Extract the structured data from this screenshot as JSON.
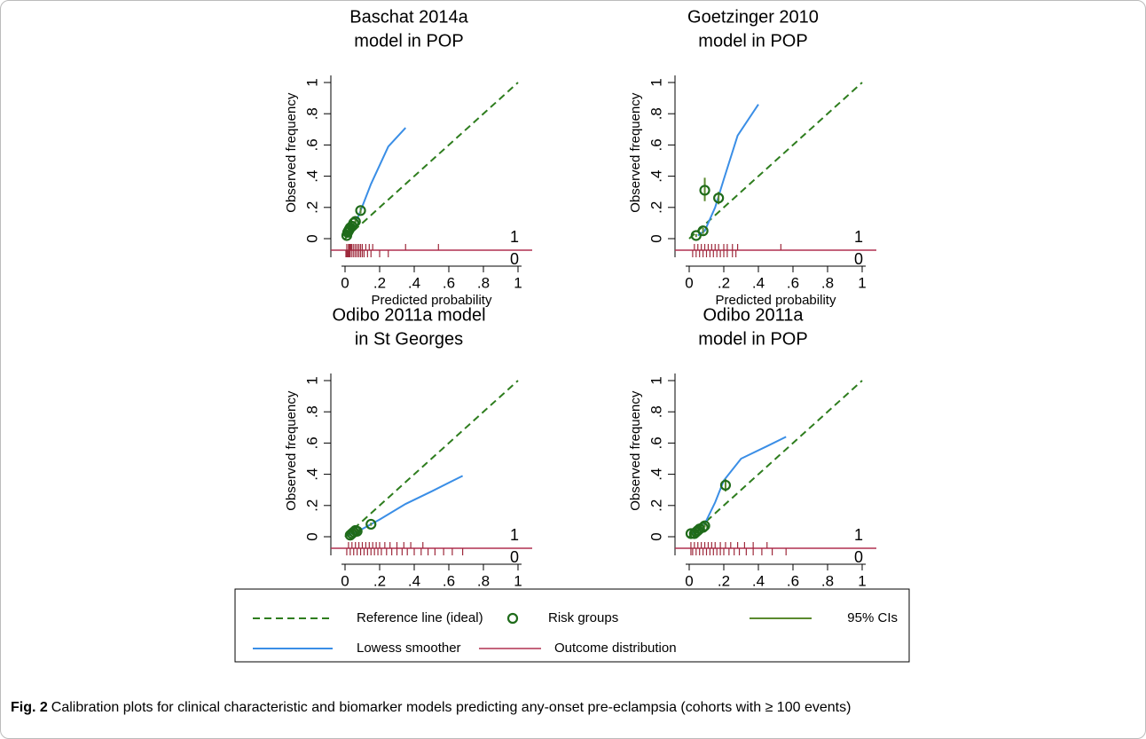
{
  "chart_data": [
    {
      "type": "calibration",
      "title": [
        "Baschat 2014a",
        "model in POP"
      ],
      "xlabel": "Predicted probability",
      "ylabel": "Observed frequency",
      "xlim": [
        0,
        1
      ],
      "ylim": [
        0,
        1
      ],
      "xticks": [
        0,
        {
          "value": 0.2,
          "label": ".2"
        },
        {
          "value": 0.4,
          "label": ".4"
        },
        {
          "value": 0.6,
          "label": ".6"
        },
        {
          "value": 0.8,
          "label": ".8"
        },
        1
      ],
      "yticks": [
        0,
        {
          "value": 0.2,
          "label": ".2"
        },
        {
          "value": 0.4,
          "label": ".4"
        },
        {
          "value": 0.6,
          "label": ".6"
        },
        {
          "value": 0.8,
          "label": ".8"
        },
        1
      ],
      "series": [
        {
          "color": "#2e7d1e",
          "x": [
            0,
            1
          ],
          "values": [
            0,
            1
          ]
        },
        {
          "color": "#3a8ee6",
          "x": [
            0.01,
            0.03,
            0.05,
            0.08,
            0.15,
            0.25,
            0.35
          ],
          "values": [
            0.01,
            0.05,
            0.09,
            0.15,
            0.35,
            0.59,
            0.71
          ]
        },
        {
          "color": "#1f6b1a",
          "x": [
            0.01,
            0.015,
            0.02,
            0.025,
            0.03,
            0.04,
            0.05,
            0.06,
            0.09
          ],
          "values": [
            0.02,
            0.04,
            0.05,
            0.06,
            0.07,
            0.08,
            0.1,
            0.11,
            0.18
          ],
          "ci_low": [
            0.01,
            0.03,
            0.04,
            0.05,
            0.06,
            0.07,
            0.09,
            0.1,
            0.16
          ],
          "ci_high": [
            0.03,
            0.05,
            0.06,
            0.07,
            0.08,
            0.09,
            0.11,
            0.12,
            0.2
          ]
        }
      ],
      "rug": {
        "color": "#9e2a3c",
        "events": [
          0.01,
          0.02,
          0.025,
          0.03,
          0.035,
          0.04,
          0.05,
          0.06,
          0.07,
          0.08,
          0.09,
          0.1,
          0.12,
          0.14,
          0.16,
          0.35,
          0.54
        ],
        "nonevents": [
          0.005,
          0.01,
          0.015,
          0.02,
          0.025,
          0.03,
          0.04,
          0.05,
          0.06,
          0.07,
          0.08,
          0.09,
          0.1,
          0.11,
          0.13,
          0.15,
          0.2,
          0.25
        ]
      },
      "outcome_labels": [
        "1",
        "0"
      ]
    },
    {
      "type": "calibration",
      "title": [
        "Goetzinger 2010",
        "model in POP"
      ],
      "xlabel": "Predicted probability",
      "ylabel": "Observed frequency",
      "xlim": [
        0,
        1
      ],
      "ylim": [
        0,
        1
      ],
      "xticks": [
        0,
        {
          "value": 0.2,
          "label": ".2"
        },
        {
          "value": 0.4,
          "label": ".4"
        },
        {
          "value": 0.6,
          "label": ".6"
        },
        {
          "value": 0.8,
          "label": ".8"
        },
        1
      ],
      "yticks": [
        0,
        {
          "value": 0.2,
          "label": ".2"
        },
        {
          "value": 0.4,
          "label": ".4"
        },
        {
          "value": 0.6,
          "label": ".6"
        },
        {
          "value": 0.8,
          "label": ".8"
        },
        1
      ],
      "series": [
        {
          "color": "#2e7d1e",
          "x": [
            0,
            1
          ],
          "values": [
            0,
            1
          ]
        },
        {
          "color": "#3a8ee6",
          "x": [
            0.05,
            0.09,
            0.15,
            0.2,
            0.28,
            0.4
          ],
          "values": [
            0.02,
            0.05,
            0.2,
            0.38,
            0.66,
            0.86
          ]
        },
        {
          "color": "#1f6b1a",
          "x": [
            0.04,
            0.08,
            0.09,
            0.17
          ],
          "values": [
            0.02,
            0.05,
            0.31,
            0.26
          ],
          "ci_low": [
            0.01,
            0.03,
            0.24,
            0.22
          ],
          "ci_high": [
            0.03,
            0.07,
            0.39,
            0.3
          ]
        }
      ],
      "rug": {
        "color": "#9e2a3c",
        "events": [
          0.03,
          0.05,
          0.07,
          0.09,
          0.11,
          0.13,
          0.15,
          0.17,
          0.2,
          0.22,
          0.25,
          0.28,
          0.53
        ],
        "nonevents": [
          0.02,
          0.04,
          0.06,
          0.08,
          0.1,
          0.12,
          0.14,
          0.16,
          0.18,
          0.2,
          0.22,
          0.25,
          0.27
        ]
      },
      "outcome_labels": [
        "1",
        "0"
      ]
    },
    {
      "type": "calibration",
      "title": [
        "Odibo 2011a model",
        "in St Georges"
      ],
      "xlabel": "Predicted probability",
      "ylabel": "Observed frequency",
      "xlim": [
        0,
        1
      ],
      "ylim": [
        0,
        1
      ],
      "xticks": [
        0,
        {
          "value": 0.2,
          "label": ".2"
        },
        {
          "value": 0.4,
          "label": ".4"
        },
        {
          "value": 0.6,
          "label": ".6"
        },
        {
          "value": 0.8,
          "label": ".8"
        },
        1
      ],
      "yticks": [
        0,
        {
          "value": 0.2,
          "label": ".2"
        },
        {
          "value": 0.4,
          "label": ".4"
        },
        {
          "value": 0.6,
          "label": ".6"
        },
        {
          "value": 0.8,
          "label": ".8"
        },
        1
      ],
      "series": [
        {
          "color": "#2e7d1e",
          "x": [
            0,
            1
          ],
          "values": [
            0,
            1
          ]
        },
        {
          "color": "#3a8ee6",
          "x": [
            0.02,
            0.1,
            0.2,
            0.35,
            0.5,
            0.68
          ],
          "values": [
            0.01,
            0.05,
            0.11,
            0.21,
            0.29,
            0.39
          ]
        },
        {
          "color": "#1f6b1a",
          "x": [
            0.03,
            0.04,
            0.05,
            0.06,
            0.07,
            0.15
          ],
          "values": [
            0.01,
            0.02,
            0.03,
            0.04,
            0.035,
            0.08
          ],
          "ci_low": [
            0.005,
            0.015,
            0.02,
            0.03,
            0.025,
            0.07
          ],
          "ci_high": [
            0.015,
            0.025,
            0.04,
            0.05,
            0.045,
            0.09
          ]
        }
      ],
      "rug": {
        "color": "#9e2a3c",
        "events": [
          0.02,
          0.04,
          0.06,
          0.08,
          0.1,
          0.12,
          0.14,
          0.16,
          0.18,
          0.2,
          0.23,
          0.26,
          0.3,
          0.34,
          0.38,
          0.45
        ],
        "nonevents": [
          0.01,
          0.03,
          0.05,
          0.07,
          0.09,
          0.11,
          0.13,
          0.15,
          0.17,
          0.19,
          0.21,
          0.24,
          0.27,
          0.3,
          0.33,
          0.36,
          0.4,
          0.44,
          0.48,
          0.52,
          0.57,
          0.62,
          0.68
        ]
      },
      "outcome_labels": [
        "1",
        "0"
      ]
    },
    {
      "type": "calibration",
      "title": [
        "Odibo 2011a",
        "model in POP"
      ],
      "xlabel": "Predicted probability",
      "ylabel": "Observed frequency",
      "xlim": [
        0,
        1
      ],
      "ylim": [
        0,
        1
      ],
      "xticks": [
        0,
        {
          "value": 0.2,
          "label": ".2"
        },
        {
          "value": 0.4,
          "label": ".4"
        },
        {
          "value": 0.6,
          "label": ".6"
        },
        {
          "value": 0.8,
          "label": ".8"
        },
        1
      ],
      "yticks": [
        0,
        {
          "value": 0.2,
          "label": ".2"
        },
        {
          "value": 0.4,
          "label": ".4"
        },
        {
          "value": 0.6,
          "label": ".6"
        },
        {
          "value": 0.8,
          "label": ".8"
        },
        1
      ],
      "series": [
        {
          "color": "#2e7d1e",
          "x": [
            0,
            1
          ],
          "values": [
            0,
            1
          ]
        },
        {
          "color": "#3a8ee6",
          "x": [
            0.02,
            0.08,
            0.15,
            0.2,
            0.3,
            0.45,
            0.56
          ],
          "values": [
            0.02,
            0.06,
            0.22,
            0.36,
            0.5,
            0.58,
            0.64
          ]
        },
        {
          "color": "#1f6b1a",
          "x": [
            0.01,
            0.03,
            0.04,
            0.05,
            0.06,
            0.08,
            0.09,
            0.21
          ],
          "values": [
            0.02,
            0.02,
            0.03,
            0.04,
            0.05,
            0.06,
            0.07,
            0.33
          ],
          "ci_low": [
            0.01,
            0.01,
            0.02,
            0.03,
            0.04,
            0.05,
            0.06,
            0.29
          ],
          "ci_high": [
            0.03,
            0.03,
            0.04,
            0.05,
            0.06,
            0.07,
            0.08,
            0.37
          ]
        }
      ],
      "rug": {
        "color": "#9e2a3c",
        "events": [
          0.01,
          0.03,
          0.05,
          0.07,
          0.09,
          0.11,
          0.13,
          0.15,
          0.18,
          0.21,
          0.24,
          0.28,
          0.32,
          0.37,
          0.45
        ],
        "nonevents": [
          0.01,
          0.02,
          0.04,
          0.06,
          0.08,
          0.1,
          0.12,
          0.14,
          0.16,
          0.18,
          0.2,
          0.23,
          0.26,
          0.29,
          0.33,
          0.37,
          0.42,
          0.48,
          0.56
        ]
      },
      "outcome_labels": [
        "1",
        "0"
      ]
    }
  ],
  "legend": [
    {
      "name": "Reference line (ideal)",
      "color": "#2e7d1e"
    },
    {
      "name": "Risk groups",
      "color": "#1f6b1a"
    },
    {
      "name": "95% CIs",
      "color": "#5a8a2e"
    },
    {
      "name": "Lowess smoother",
      "color": "#3a8ee6"
    },
    {
      "name": "Outcome distribution",
      "color": "#b03050"
    }
  ],
  "caption": {
    "label": "Fig. 2",
    "text": "Calibration plots for clinical characteristic and biomarker models predicting any-onset pre-eclampsia (cohorts with ≥ 100 events)"
  }
}
